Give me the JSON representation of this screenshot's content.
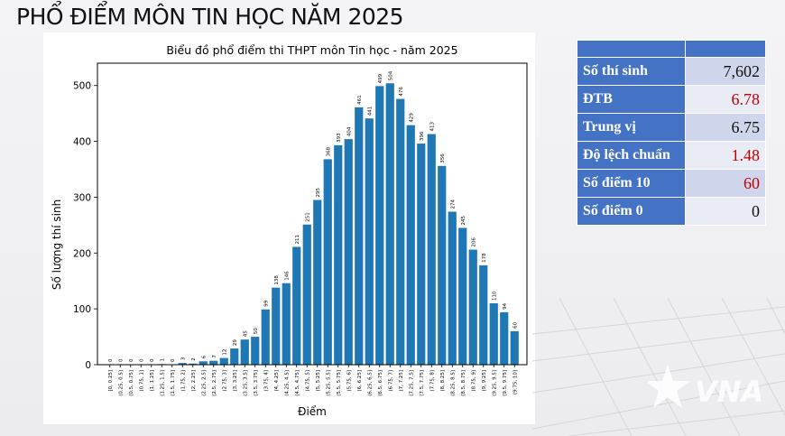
{
  "page": {
    "title": "PHỔ ĐIỂM MÔN TIN HỌC NĂM 2025"
  },
  "stats": {
    "rows": [
      {
        "label": "Số thí sinh",
        "value": "7,602",
        "highlight": false
      },
      {
        "label": "ĐTB",
        "value": "6.78",
        "highlight": true
      },
      {
        "label": "Trung vị",
        "value": "6.75",
        "highlight": false
      },
      {
        "label": "Độ lệch chuẩn",
        "value": "1.48",
        "highlight": true
      },
      {
        "label": "Số điểm 10",
        "value": "60",
        "highlight": true
      },
      {
        "label": "Số điểm 0",
        "value": "0",
        "highlight": false
      }
    ]
  },
  "watermark": {
    "text": "VNA"
  },
  "colors": {
    "bar": "#1f77b4",
    "table_header": "#4472c4",
    "table_odd": "#cfd5ea",
    "table_even": "#e9ebf5",
    "highlight": "#c00000"
  },
  "chart_data": {
    "type": "bar",
    "title": "Biểu đồ phổ điểm thi THPT môn Tin học - năm 2025",
    "xlabel": "Điểm",
    "ylabel": "Số lượng thí sinh",
    "ylim": [
      0,
      540
    ],
    "yticks": [
      0,
      100,
      200,
      300,
      400,
      500
    ],
    "grid": false,
    "categories": [
      "[0, 0.25]",
      "(0.25, 0.5]",
      "(0.5, 0.75]",
      "(0.75, 1]",
      "(1, 1.25]",
      "(1.25, 1.5]",
      "(1.5, 1.75]",
      "(1.75, 2]",
      "(2, 2.25]",
      "(2.25, 2.5]",
      "(2.5, 2.75]",
      "(2.75, 3]",
      "(3, 3.25]",
      "(3.25, 3.5]",
      "(3.5, 3.75]",
      "(3.75, 4]",
      "(4, 4.25]",
      "(4.25, 4.5]",
      "(4.5, 4.75]",
      "(4.75, 5]",
      "(5, 5.25]",
      "(5.25, 5.5]",
      "(5.5, 5.75]",
      "(5.75, 6]",
      "(6, 6.25]",
      "(6.25, 6.5]",
      "(6.5, 6.75]",
      "(6.75, 7]",
      "(7, 7.25]",
      "(7.25, 7.5]",
      "(7.5, 7.75]",
      "(7.75, 8]",
      "(8, 8.25]",
      "(8.25, 8.5]",
      "(8.5, 8.75]",
      "(8.75, 9]",
      "(9, 9.25]",
      "(9.25, 9.5]",
      "(9.5, 9.75]",
      "(9.75, 10]"
    ],
    "values": [
      0,
      0,
      0,
      0,
      0,
      1,
      0,
      3,
      2,
      6,
      7,
      12,
      29,
      45,
      50,
      99,
      138,
      146,
      211,
      251,
      295,
      368,
      393,
      404,
      461,
      441,
      499,
      504,
      476,
      429,
      396,
      413,
      356,
      274,
      245,
      206,
      178,
      110,
      94,
      60
    ]
  }
}
